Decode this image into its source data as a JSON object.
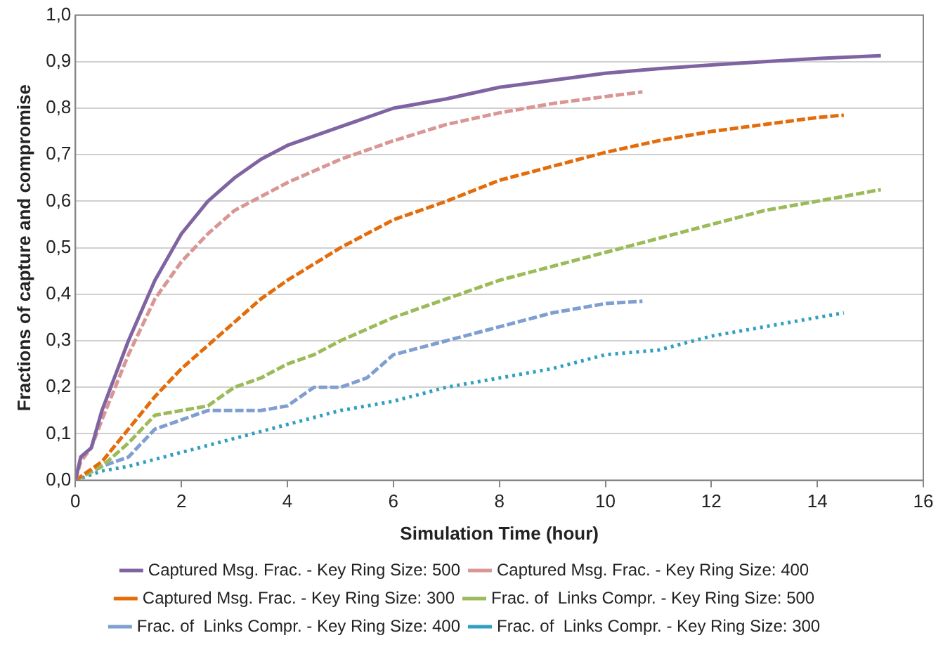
{
  "chart_data": {
    "type": "line",
    "xlabel": "Simulation Time (hour)",
    "ylabel": "Fractions of capture and compromise",
    "xlim": [
      0,
      16
    ],
    "xticks": [
      0,
      2,
      4,
      6,
      8,
      10,
      12,
      14,
      16
    ],
    "ylim": [
      0,
      1
    ],
    "yticks": [
      {
        "value": 0,
        "label": "0,0"
      },
      {
        "value": 0.1,
        "label": "0,1"
      },
      {
        "value": 0.2,
        "label": "0,2"
      },
      {
        "value": 0.3,
        "label": "0,3"
      },
      {
        "value": 0.4,
        "label": "0,4"
      },
      {
        "value": 0.5,
        "label": "0,5"
      },
      {
        "value": 0.6,
        "label": "0,6"
      },
      {
        "value": 0.7,
        "label": "0,7"
      },
      {
        "value": 0.8,
        "label": "0,8"
      },
      {
        "value": 0.9,
        "label": "0,9"
      },
      {
        "value": 1,
        "label": "1,0"
      }
    ],
    "grid": "y",
    "legend": "bottom",
    "marker": "none",
    "series": [
      {
        "name": "Captured Msg. Frac. - Key Ring Size: 500",
        "color": "#8064a2",
        "line_style": "solid",
        "x": [
          0,
          0.1,
          0.3,
          0.5,
          1,
          1.5,
          2,
          2.5,
          3,
          3.5,
          4,
          5,
          6,
          7,
          8,
          9,
          10,
          11,
          12,
          13,
          14,
          15.2
        ],
        "values": [
          0,
          0.05,
          0.07,
          0.15,
          0.3,
          0.43,
          0.53,
          0.6,
          0.65,
          0.69,
          0.72,
          0.76,
          0.8,
          0.82,
          0.845,
          0.86,
          0.875,
          0.885,
          0.893,
          0.9,
          0.907,
          0.913
        ]
      },
      {
        "name": "Captured Msg. Frac. - Key Ring Size: 400",
        "color": "#d99694",
        "line_style": "dashed",
        "x": [
          0,
          0.1,
          0.3,
          0.5,
          1,
          1.5,
          2,
          2.5,
          3,
          4,
          5,
          6,
          7,
          8,
          9,
          10,
          10.7
        ],
        "values": [
          0,
          0.04,
          0.07,
          0.13,
          0.27,
          0.39,
          0.47,
          0.53,
          0.58,
          0.64,
          0.69,
          0.73,
          0.765,
          0.79,
          0.81,
          0.825,
          0.835
        ]
      },
      {
        "name": "Captured Msg. Frac. - Key Ring Size: 300",
        "color": "#e46c0a",
        "line_style": "dashed",
        "x": [
          0,
          0.5,
          1,
          1.5,
          2,
          2.5,
          3,
          3.5,
          4,
          5,
          6,
          7,
          8,
          9,
          10,
          11,
          12,
          13,
          14,
          14.5
        ],
        "values": [
          0,
          0.04,
          0.11,
          0.18,
          0.24,
          0.29,
          0.34,
          0.39,
          0.43,
          0.5,
          0.56,
          0.6,
          0.645,
          0.675,
          0.705,
          0.73,
          0.75,
          0.765,
          0.78,
          0.785
        ]
      },
      {
        "name": "Frac. of  Links Compr. - Key Ring Size: 500",
        "color": "#9bbb59",
        "line_style": "dashed",
        "x": [
          0,
          0.5,
          1,
          1.5,
          2,
          2.5,
          3,
          3.5,
          4,
          4.5,
          5,
          6,
          7,
          8,
          9,
          10,
          11,
          12,
          13,
          14,
          15.2
        ],
        "values": [
          0,
          0.03,
          0.08,
          0.14,
          0.15,
          0.16,
          0.2,
          0.22,
          0.25,
          0.27,
          0.3,
          0.35,
          0.39,
          0.43,
          0.46,
          0.49,
          0.52,
          0.55,
          0.58,
          0.6,
          0.625
        ]
      },
      {
        "name": "Frac. of  Links Compr. - Key Ring Size: 400",
        "color": "#7f9fd0",
        "line_style": "dashed",
        "x": [
          0,
          0.5,
          1,
          1.5,
          2,
          2.5,
          3,
          3.5,
          4,
          4.5,
          5,
          5.5,
          6,
          7,
          8,
          9,
          10,
          10.7
        ],
        "values": [
          0,
          0.03,
          0.05,
          0.11,
          0.13,
          0.15,
          0.15,
          0.15,
          0.16,
          0.2,
          0.2,
          0.22,
          0.27,
          0.3,
          0.33,
          0.36,
          0.38,
          0.385
        ]
      },
      {
        "name": "Frac. of  Links Compr. - Key Ring Size: 300",
        "color": "#31a0c0",
        "line_style": "dotted",
        "x": [
          0,
          0.5,
          1,
          2,
          3,
          4,
          5,
          6,
          7,
          8,
          9,
          10,
          11,
          12,
          13,
          14,
          14.5
        ],
        "values": [
          0,
          0.02,
          0.03,
          0.06,
          0.09,
          0.12,
          0.15,
          0.17,
          0.2,
          0.22,
          0.24,
          0.27,
          0.28,
          0.31,
          0.33,
          0.35,
          0.36
        ]
      }
    ]
  }
}
